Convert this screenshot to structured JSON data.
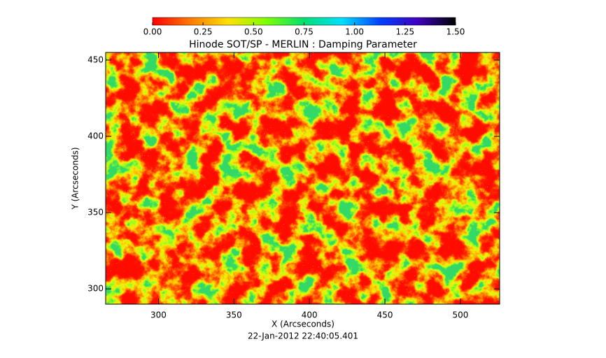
{
  "chart_data": {
    "type": "image",
    "title": "Hinode SOT/SP - MERLIN : Damping Parameter",
    "x_label": "X (Arcseconds)",
    "y_label": "Y (Arcseconds)",
    "footer": "22-Jan-2012 22:40:05.401",
    "xlim": [
      265,
      526
    ],
    "ylim": [
      290,
      455
    ],
    "xticks": [
      300,
      350,
      400,
      450,
      500
    ],
    "yticks": [
      300,
      350,
      400,
      450
    ],
    "colorbar": {
      "lim": [
        0,
        1.5
      ],
      "ticks": [
        {
          "value": 0,
          "label": "0.00"
        },
        {
          "value": 0.25,
          "label": "0.25"
        },
        {
          "value": 0.5,
          "label": "0.50"
        },
        {
          "value": 0.75,
          "label": "0.75"
        },
        {
          "value": 1,
          "label": "1.00"
        },
        {
          "value": 1.25,
          "label": "1.25"
        },
        {
          "value": 1.5,
          "label": "1.50"
        }
      ],
      "colors": [
        "#ff0000",
        "#ff7a00",
        "#ffe000",
        "#7fff00",
        "#00e070",
        "#00e0ff",
        "#0040ff",
        "#4000c0",
        "#000000"
      ]
    }
  }
}
